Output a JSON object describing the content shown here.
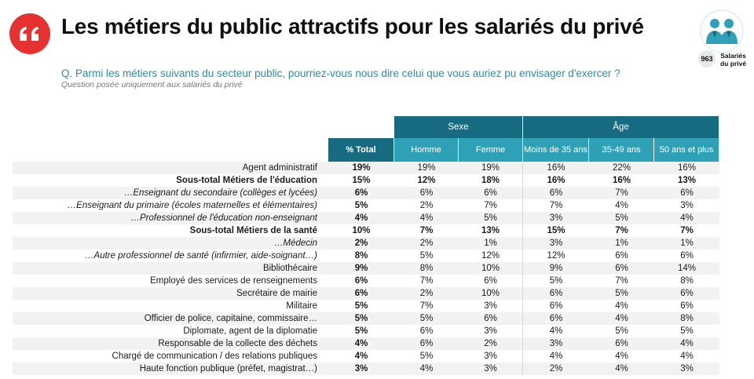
{
  "header": {
    "title": "Les métiers du public attractifs pour les salariés du privé",
    "question": "Q. Parmi les métiers suivants du secteur public, pourriez-vous nous dire celui que vous auriez pu envisager d'exercer ?",
    "note": "Question posée uniquement aux salariés du privé",
    "sample_count": "963",
    "sample_label_1": "Salariés",
    "sample_label_2": "du privé"
  },
  "colors": {
    "accent_red": "#e63131",
    "header_dark": "#176b81",
    "header_light": "#2fa1b7",
    "question_text": "#2a8fa9"
  },
  "table": {
    "groups": {
      "sexe": "Sexe",
      "age": "Âge"
    },
    "columns": [
      "% Total",
      "Homme",
      "Femme",
      "Moins de 35 ans",
      "35-49 ans",
      "50 ans et plus"
    ],
    "rows": [
      {
        "label": "Agent administratif",
        "style": "normal",
        "values": [
          "19%",
          "19%",
          "19%",
          "16%",
          "22%",
          "16%"
        ]
      },
      {
        "label": "Sous-total Métiers de l'éducation",
        "style": "bold",
        "values": [
          "15%",
          "12%",
          "18%",
          "16%",
          "16%",
          "13%"
        ]
      },
      {
        "label": "…Enseignant du secondaire (collèges et lycées)",
        "style": "italic",
        "values": [
          "6%",
          "6%",
          "6%",
          "6%",
          "7%",
          "6%"
        ]
      },
      {
        "label": "…Enseignant du primaire (écoles maternelles et élémentaires)",
        "style": "italic",
        "values": [
          "5%",
          "2%",
          "7%",
          "7%",
          "4%",
          "3%"
        ]
      },
      {
        "label": "…Professionnel de l'éducation non-enseignant",
        "style": "italic",
        "values": [
          "4%",
          "4%",
          "5%",
          "3%",
          "5%",
          "4%"
        ]
      },
      {
        "label": "Sous-total Métiers de la santé",
        "style": "bold",
        "values": [
          "10%",
          "7%",
          "13%",
          "15%",
          "7%",
          "7%"
        ]
      },
      {
        "label": "…Médecin",
        "style": "italic",
        "values": [
          "2%",
          "2%",
          "1%",
          "3%",
          "1%",
          "1%"
        ]
      },
      {
        "label": "…Autre professionnel de santé (infirmier, aide-soignant…)",
        "style": "italic",
        "values": [
          "8%",
          "5%",
          "12%",
          "12%",
          "6%",
          "6%"
        ]
      },
      {
        "label": "Bibliothécaire",
        "style": "normal",
        "values": [
          "9%",
          "8%",
          "10%",
          "9%",
          "6%",
          "14%"
        ]
      },
      {
        "label": "Employé des services de renseignements",
        "style": "normal",
        "values": [
          "6%",
          "7%",
          "6%",
          "5%",
          "7%",
          "8%"
        ]
      },
      {
        "label": "Secrétaire de mairie",
        "style": "normal",
        "values": [
          "6%",
          "2%",
          "10%",
          "6%",
          "5%",
          "6%"
        ]
      },
      {
        "label": "Militaire",
        "style": "normal",
        "values": [
          "5%",
          "7%",
          "3%",
          "6%",
          "4%",
          "6%"
        ]
      },
      {
        "label": "Officier de police, capitaine, commissaire…",
        "style": "normal",
        "values": [
          "5%",
          "5%",
          "6%",
          "6%",
          "4%",
          "8%"
        ]
      },
      {
        "label": "Diplomate, agent de la diplomatie",
        "style": "normal",
        "values": [
          "5%",
          "6%",
          "3%",
          "4%",
          "5%",
          "5%"
        ]
      },
      {
        "label": "Responsable de la collecte des déchets",
        "style": "normal",
        "values": [
          "4%",
          "6%",
          "2%",
          "3%",
          "6%",
          "4%"
        ]
      },
      {
        "label": "Chargé de communication / des relations publiques",
        "style": "normal",
        "values": [
          "4%",
          "5%",
          "3%",
          "4%",
          "4%",
          "4%"
        ]
      },
      {
        "label": "Haute fonction publique (préfet, magistrat…)",
        "style": "normal",
        "values": [
          "3%",
          "4%",
          "3%",
          "2%",
          "4%",
          "3%"
        ]
      }
    ]
  }
}
